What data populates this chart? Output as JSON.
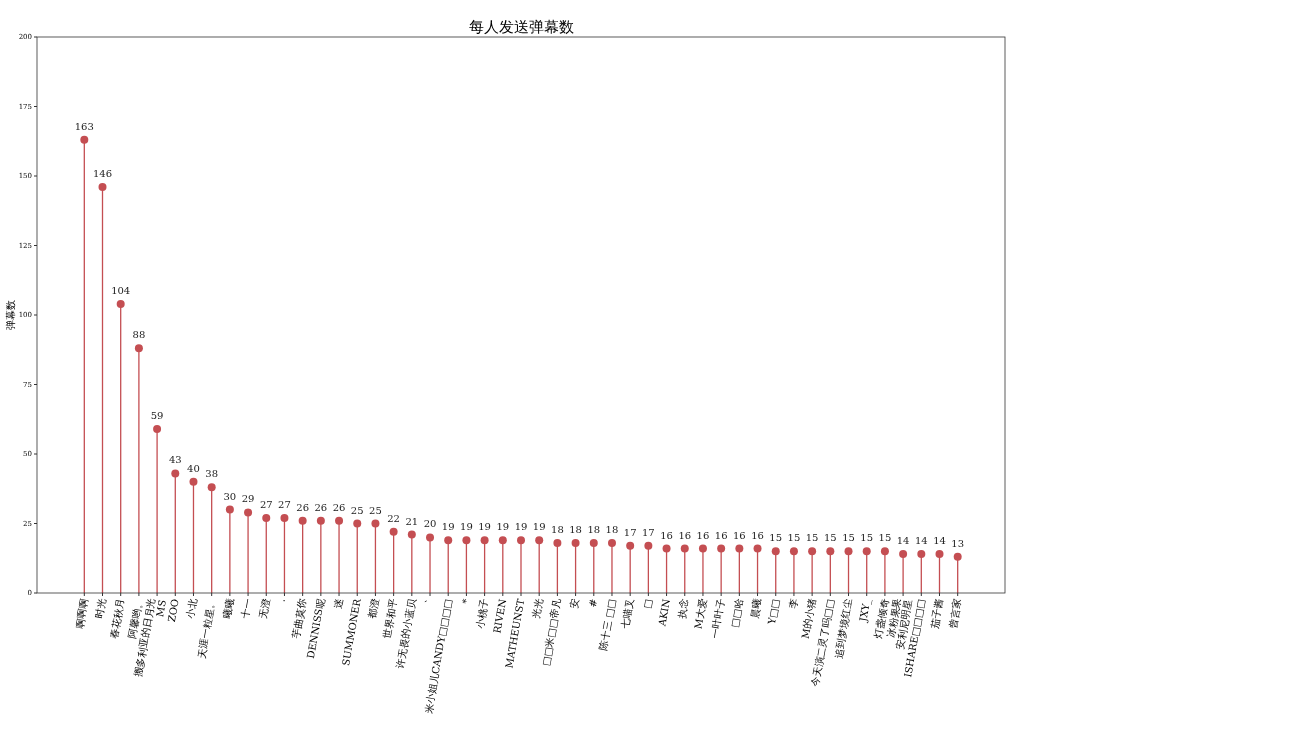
{
  "chart_data": {
    "type": "lollipop",
    "title": "每人发送弹幕数",
    "ylabel": "弹幕数",
    "categories": [
      "啊啊啊",
      "时光",
      "春花秋月",
      "阿馨哟。",
      "搬多利亚的日月光\nMS",
      "ZOO",
      "小北",
      "天涯一粒星。",
      "曦曦",
      "十一",
      "无澄",
      "·",
      "芋曲莫你",
      "DENNISS呢",
      "迷",
      "SUMMONER",
      "都澄",
      "世界和平",
      "许无畏的小蓝贝",
      "`",
      "米小姐儿CANDY□□□□",
      "*",
      "小桃子",
      "RIVEN",
      "MATHEUNST",
      "光光",
      "□□米□□帝凡",
      "安",
      "#",
      "陈十三 □□",
      "七喵叉",
      "□",
      "AKIN",
      "执念",
      "M大爱",
      "一叶叶子",
      "□□哈",
      "晨曦",
      "Y□□",
      "李",
      "M的小猪",
      "今天演二灵了吗□□",
      "追到梦境红尘",
      "JXY_",
      "灯盏倾奇",
      "冰粉果果\n安利尼明星",
      "ISHARE□□□□",
      "茄子酱",
      "曾言家"
    ],
    "values": [
      163,
      146,
      104,
      88,
      59,
      43,
      40,
      38,
      30,
      29,
      27,
      27,
      26,
      26,
      26,
      25,
      25,
      22,
      21,
      20,
      19,
      19,
      19,
      19,
      19,
      19,
      18,
      18,
      18,
      18,
      17,
      17,
      16,
      16,
      16,
      16,
      16,
      16,
      15,
      15,
      15,
      15,
      15,
      15,
      15,
      14,
      14,
      14,
      13
    ],
    "color": "#c44e52",
    "marker": "circle",
    "data_labels": true,
    "ylim": [
      0,
      200
    ],
    "yticks": [
      0,
      25,
      50,
      75,
      100,
      125,
      150,
      175,
      200
    ]
  }
}
